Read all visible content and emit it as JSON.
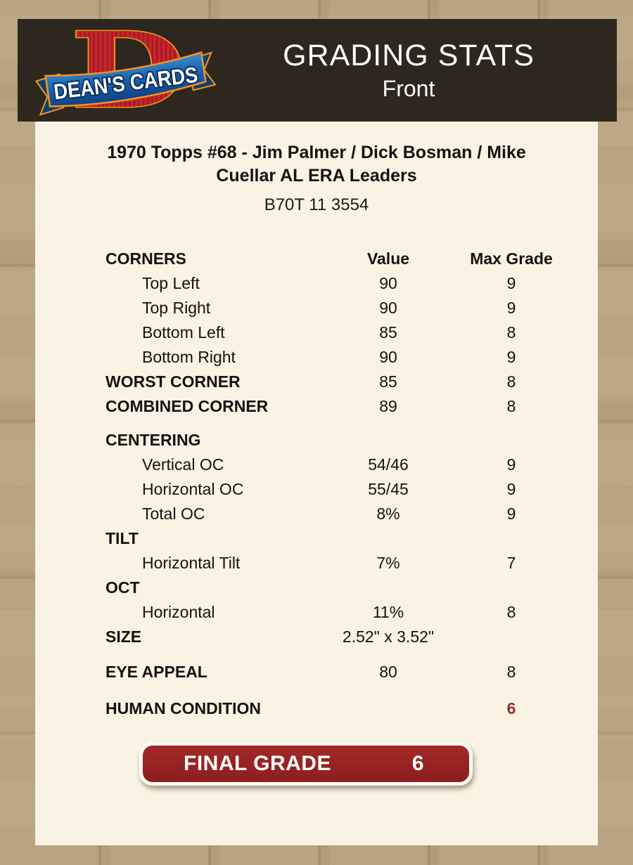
{
  "header": {
    "brand": "DEAN'S CARDS",
    "title": "GRADING STATS",
    "subtitle": "Front"
  },
  "card": {
    "title_line1": "1970 Topps #68  -  Jim Palmer / Dick Bosman / Mike",
    "title_line2": "Cuellar AL ERA Leaders",
    "code": "B70T 11 3554"
  },
  "table": {
    "sections": [
      {
        "rows": [
          {
            "label": "CORNERS",
            "value": "Value",
            "max": "Max Grade",
            "head": true
          },
          {
            "label": "Top Left",
            "value": "90",
            "max": "9",
            "indent": true
          },
          {
            "label": "Top Right",
            "value": "90",
            "max": "9",
            "indent": true
          },
          {
            "label": "Bottom Left",
            "value": "85",
            "max": "8",
            "indent": true
          },
          {
            "label": "Bottom Right",
            "value": "90",
            "max": "9",
            "indent": true
          },
          {
            "label": "WORST CORNER",
            "value": "85",
            "max": "8",
            "bold": true
          },
          {
            "label": "COMBINED CORNER",
            "value": "89",
            "max": "8",
            "bold": true
          }
        ]
      },
      {
        "rows": [
          {
            "label": "CENTERING",
            "value": "",
            "max": "",
            "bold": true
          },
          {
            "label": "Vertical OC",
            "value": "54/46",
            "max": "9",
            "indent": true
          },
          {
            "label": "Horizontal OC",
            "value": "55/45",
            "max": "9",
            "indent": true
          },
          {
            "label": "Total OC",
            "value": "8%",
            "max": "9",
            "indent": true
          },
          {
            "label": "TILT",
            "value": "",
            "max": "",
            "bold": true
          },
          {
            "label": "Horizontal Tilt",
            "value": "7%",
            "max": "7",
            "indent": true
          },
          {
            "label": "OCT",
            "value": "",
            "max": "",
            "bold": true
          },
          {
            "label": "Horizontal",
            "value": "11%",
            "max": "8",
            "indent": true
          },
          {
            "label": "SIZE",
            "value": "2.52\" x 3.52\"",
            "max": "",
            "bold": true
          }
        ]
      },
      {
        "rows": [
          {
            "label": "EYE APPEAL",
            "value": "80",
            "max": "8",
            "bold": true
          }
        ]
      },
      {
        "rows": [
          {
            "label": "HUMAN CONDITION",
            "value": "",
            "max": "6",
            "bold": true,
            "max_red": true
          }
        ]
      }
    ]
  },
  "final_grade": {
    "label": "FINAL GRADE",
    "value": "6"
  },
  "colors": {
    "page_bg": "#b29b78",
    "header_bg": "#2e271f",
    "panel_bg": "#faf3e3",
    "maroon": "#992424",
    "red_text": "#9a2b2b",
    "logo_red": "#c5262c",
    "logo_orange": "#f7941d",
    "logo_blue": "#1c64ad",
    "logo_navy": "#0a2d5e"
  }
}
